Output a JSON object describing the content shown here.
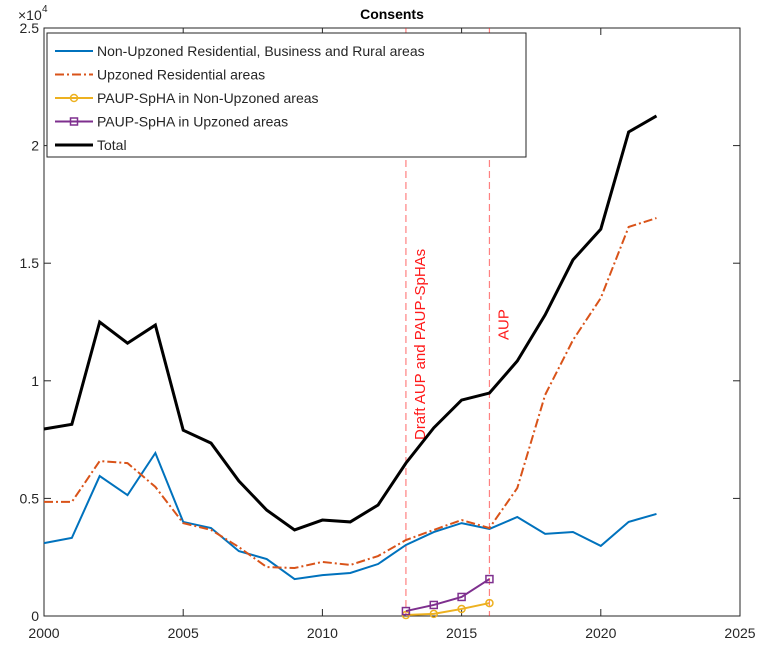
{
  "chart_data": {
    "type": "line",
    "title": "Consents",
    "x": [
      2000,
      2001,
      2002,
      2003,
      2004,
      2005,
      2006,
      2007,
      2008,
      2009,
      2010,
      2011,
      2012,
      2013,
      2014,
      2015,
      2016,
      2017,
      2018,
      2019,
      2020,
      2021,
      2022
    ],
    "series": [
      {
        "name": "Non-Upzoned Residential, Business and Rural areas",
        "color": "#0072bd",
        "style": "solid",
        "marker": "none",
        "values": [
          3100,
          3320,
          5950,
          5140,
          6930,
          4000,
          3740,
          2760,
          2420,
          1570,
          1740,
          1830,
          2210,
          3020,
          3570,
          3950,
          3700,
          4210,
          3490,
          3570,
          2980,
          4000,
          4340
        ]
      },
      {
        "name": "Upzoned Residential areas",
        "color": "#d95319",
        "style": "dashdot",
        "marker": "none",
        "values": [
          4850,
          4850,
          6590,
          6500,
          5490,
          3950,
          3660,
          2930,
          2080,
          2040,
          2300,
          2170,
          2550,
          3230,
          3660,
          4080,
          3740,
          5440,
          9400,
          11730,
          13520,
          16540,
          16920
        ]
      },
      {
        "name": "PAUP-SpHA in Non-Upzoned areas",
        "color": "#edb120",
        "style": "solid",
        "marker": "circle",
        "values": [
          null,
          null,
          null,
          null,
          null,
          null,
          null,
          null,
          null,
          null,
          null,
          null,
          null,
          40,
          90,
          300,
          550,
          null,
          null,
          null,
          null,
          null,
          null
        ]
      },
      {
        "name": "PAUP-SpHA in Upzoned areas",
        "color": "#7e2f8e",
        "style": "solid",
        "marker": "square",
        "values": [
          null,
          null,
          null,
          null,
          null,
          null,
          null,
          null,
          null,
          null,
          null,
          null,
          null,
          210,
          470,
          810,
          1570,
          null,
          null,
          null,
          null,
          null,
          null
        ]
      },
      {
        "name": "Total",
        "color": "#000000",
        "style": "bold",
        "marker": "none",
        "values": [
          7950,
          8150,
          12500,
          11600,
          12370,
          7900,
          7350,
          5740,
          4500,
          3660,
          4080,
          4000,
          4720,
          6500,
          8000,
          9180,
          9480,
          10840,
          12800,
          15140,
          16450,
          20580,
          21260
        ]
      }
    ],
    "xlim": [
      2000,
      2025
    ],
    "xticks": [
      2000,
      2005,
      2010,
      2015,
      2020,
      2025
    ],
    "ylim": [
      0,
      25000
    ],
    "yticks": [
      0,
      {
        "value": 5000,
        "label": "0.5"
      },
      {
        "value": 10000,
        "label": "1"
      },
      {
        "value": 15000,
        "label": "1.5"
      },
      {
        "value": 20000,
        "label": "2"
      },
      {
        "value": 25000,
        "label": "2.5"
      }
    ],
    "y_multiplier": "×10",
    "y_multiplier_exponent": "4",
    "annotations": [
      {
        "x": 2013,
        "text": "Draft AUP and PAUP-SpHAs"
      },
      {
        "x": 2016,
        "text": "AUP"
      }
    ],
    "annotation_color": "#ff1a1a",
    "legend": "upper left",
    "grid": false
  }
}
